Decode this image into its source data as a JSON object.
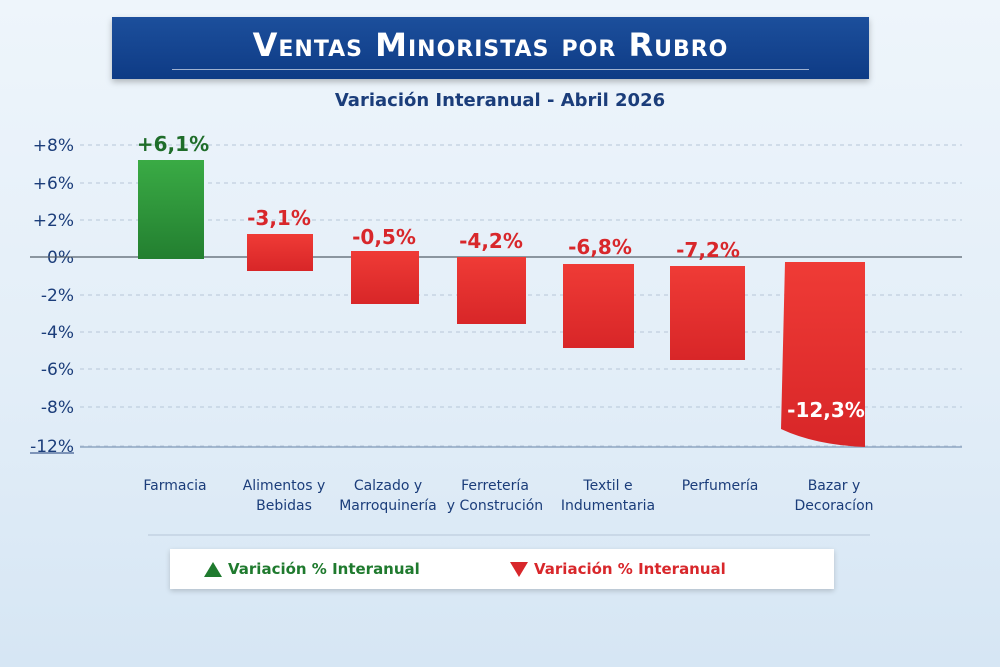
{
  "header": {
    "title": "Ventas Minoristas por Rubro",
    "subtitle": "Variación Interanual - Abril 2026"
  },
  "legend": {
    "positive_label": "Variación % Interanual",
    "negative_label": "Variación % Interanual",
    "positive_icon": "triangle-up-icon",
    "negative_icon": "triangle-down-icon"
  },
  "chart_data": {
    "type": "bar",
    "title": "Ventas Minoristas por Rubro",
    "subtitle": "Variación Interanual - Abril 2026",
    "xlabel": "",
    "ylabel": "",
    "y_ticks": [
      "+8%",
      "+6%",
      "+2%",
      "0%",
      "-2%",
      "-4%",
      "-6%",
      "-8%",
      "-12%"
    ],
    "categories": [
      [
        "Farmacia"
      ],
      [
        "Alimentos y",
        "Bebidas"
      ],
      [
        "Calzado y",
        "Marroquinería"
      ],
      [
        "Ferretería",
        "y Construción"
      ],
      [
        "Textil e",
        "Indumentaria"
      ],
      [
        "Perfumería"
      ],
      [
        "Bazar y",
        "Decoracíon"
      ]
    ],
    "values": [
      6.1,
      -3.1,
      -0.5,
      -4.2,
      -6.8,
      -7.2,
      -12.3
    ],
    "data_labels": [
      "+6,1%",
      "-3,1%",
      "-0,5%",
      "-4,2%",
      "-6,8%",
      "-7,2%",
      "-12,3%"
    ],
    "grid": true,
    "legend_position": "bottom",
    "colors": {
      "positive": "#2e9a3c",
      "negative": "#e3302f",
      "axis_text": "#1b3d7a",
      "label_positive": "#1f6d2a",
      "label_negative": "#d8272b"
    }
  }
}
